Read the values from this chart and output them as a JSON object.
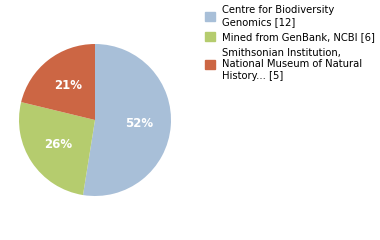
{
  "slices": [
    52,
    26,
    21
  ],
  "colors": [
    "#a8bfd8",
    "#b5cc6e",
    "#cc6644"
  ],
  "labels": [
    "52%",
    "26%",
    "21%"
  ],
  "legend_labels": [
    "Centre for Biodiversity\nGenomics [12]",
    "Mined from GenBank, NCBI [6]",
    "Smithsonian Institution,\nNational Museum of Natural\nHistory... [5]"
  ],
  "startangle": 90,
  "background_color": "#ffffff",
  "legend_fontsize": 7.2,
  "autopct_fontsize": 8.5
}
